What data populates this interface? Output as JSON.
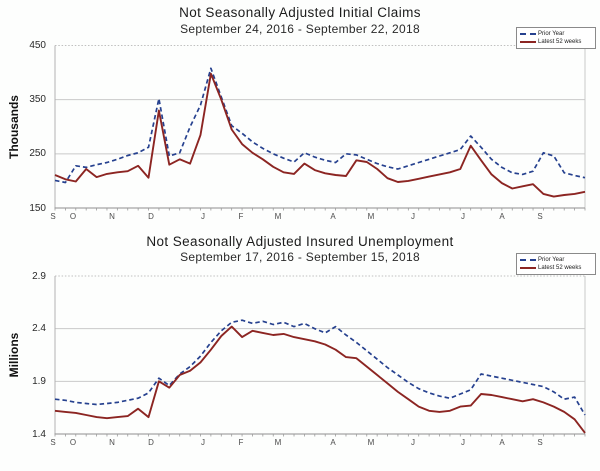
{
  "legend_note": "both charts share the same two series names",
  "chart_data": [
    {
      "type": "line",
      "title": "Not Seasonally Adjusted Initial Claims",
      "subtitle": "September 24, 2016 - September 22, 2018",
      "ylabel": "Thousands",
      "ylim": [
        150,
        450
      ],
      "y_ticks": [
        "450",
        "350",
        "250",
        "150"
      ],
      "gridline_values": [
        350,
        250
      ],
      "grid": "light horizontal gridlines, dotted top border",
      "legend_position": "top-right",
      "x_labels": [
        "S",
        "O",
        "N",
        "D",
        "J",
        "F",
        "M",
        "A",
        "M",
        "J",
        "J",
        "A",
        "S"
      ],
      "series": [
        {
          "name": "Prior Year",
          "color": "#26418f",
          "style": "dashed",
          "values": [
            201,
            197,
            228,
            225,
            230,
            234,
            240,
            247,
            252,
            262,
            352,
            246,
            252,
            300,
            340,
            408,
            355,
            302,
            288,
            272,
            260,
            250,
            242,
            235,
            252,
            244,
            238,
            234,
            250,
            248,
            240,
            232,
            226,
            222,
            228,
            234,
            240,
            246,
            252,
            258,
            283,
            262,
            240,
            225,
            215,
            212,
            218,
            252,
            246,
            215,
            210,
            206
          ]
        },
        {
          "name": "Latest 52 weeks",
          "color": "#8c2522",
          "style": "solid",
          "values": [
            211,
            203,
            199,
            222,
            207,
            213,
            216,
            218,
            228,
            206,
            330,
            230,
            240,
            232,
            285,
            398,
            350,
            295,
            268,
            252,
            240,
            226,
            216,
            213,
            232,
            220,
            214,
            211,
            209,
            238,
            235,
            222,
            205,
            198,
            200,
            204,
            208,
            212,
            216,
            222,
            265,
            238,
            212,
            196,
            186,
            190,
            194,
            176,
            171,
            174,
            176,
            180
          ]
        }
      ]
    },
    {
      "type": "line",
      "title": "Not Seasonally Adjusted Insured Unemployment",
      "subtitle": "September 17, 2016 - September 15, 2018",
      "ylabel": "Millions",
      "ylim": [
        1.4,
        2.9
      ],
      "y_ticks": [
        "2.9",
        "2.4",
        "1.9",
        "1.4"
      ],
      "gridline_values": [
        2.4,
        1.9
      ],
      "grid": "light horizontal gridlines, dotted top border",
      "legend_position": "top-right",
      "x_labels": [
        "S",
        "O",
        "N",
        "D",
        "J",
        "F",
        "M",
        "A",
        "M",
        "J",
        "J",
        "A",
        "S"
      ],
      "series": [
        {
          "name": "Prior Year",
          "color": "#26418f",
          "style": "dashed",
          "values": [
            1.73,
            1.72,
            1.7,
            1.69,
            1.68,
            1.69,
            1.7,
            1.72,
            1.74,
            1.79,
            1.93,
            1.86,
            1.97,
            2.04,
            2.14,
            2.27,
            2.38,
            2.46,
            2.48,
            2.45,
            2.47,
            2.44,
            2.46,
            2.42,
            2.45,
            2.4,
            2.36,
            2.42,
            2.34,
            2.27,
            2.19,
            2.11,
            2.03,
            1.96,
            1.89,
            1.83,
            1.79,
            1.76,
            1.74,
            1.78,
            1.82,
            1.97,
            1.95,
            1.93,
            1.91,
            1.89,
            1.87,
            1.85,
            1.8,
            1.73,
            1.75,
            1.58
          ]
        },
        {
          "name": "Latest 52 weeks",
          "color": "#8c2522",
          "style": "solid",
          "values": [
            1.62,
            1.61,
            1.6,
            1.58,
            1.56,
            1.55,
            1.56,
            1.57,
            1.64,
            1.56,
            1.9,
            1.84,
            1.96,
            2.0,
            2.08,
            2.2,
            2.33,
            2.42,
            2.32,
            2.38,
            2.36,
            2.34,
            2.35,
            2.32,
            2.3,
            2.28,
            2.25,
            2.2,
            2.13,
            2.12,
            2.04,
            1.96,
            1.88,
            1.8,
            1.73,
            1.66,
            1.62,
            1.61,
            1.62,
            1.66,
            1.67,
            1.78,
            1.77,
            1.75,
            1.73,
            1.71,
            1.73,
            1.7,
            1.66,
            1.61,
            1.54,
            1.41
          ]
        }
      ]
    }
  ]
}
